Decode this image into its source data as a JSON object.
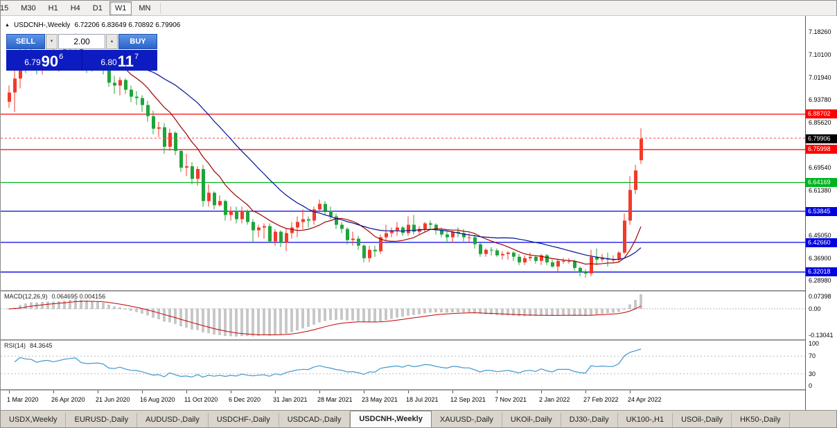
{
  "toolbar": {
    "timeframes": [
      "15",
      "M30",
      "H1",
      "H4",
      "D1",
      "W1",
      "MN"
    ],
    "active": "W1"
  },
  "icons": {
    "symbol_marker": "▲",
    "volume_up": "▲",
    "volume_down": "▼"
  },
  "chart_header": {
    "symbol_label": "USDCNH-,Weekly",
    "ohlc_text": "6.72206 6.83649 6.70892 6.79906"
  },
  "trade_panel": {
    "sell_label": "SELL",
    "buy_label": "BUY",
    "volume": "2.00",
    "sell_quote": {
      "prefix": "6.79",
      "big": "90",
      "sup": "6"
    },
    "buy_quote": {
      "prefix": "6.80",
      "big": "11",
      "sup": "7"
    }
  },
  "indicators": {
    "macd": {
      "label": "MACD(12,26,9)",
      "values": "0.064695 0.004156"
    },
    "rsi": {
      "label": "RSI(14)",
      "value": "84.3645"
    }
  },
  "tab_bar": {
    "tabs": [
      {
        "label": "USDX,Weekly",
        "active": false
      },
      {
        "label": "EURUSD-,Daily",
        "active": false
      },
      {
        "label": "AUDUSD-,Daily",
        "active": false
      },
      {
        "label": "USDCHF-,Daily",
        "active": false
      },
      {
        "label": "USDCAD-,Daily",
        "active": false
      },
      {
        "label": "USDCNH-,Weekly",
        "active": true
      },
      {
        "label": "XAUUSD-,Daily",
        "active": false
      },
      {
        "label": "UKOil-,Daily",
        "active": false
      },
      {
        "label": "DJ30-,Daily",
        "active": false
      },
      {
        "label": "UK100-,H1",
        "active": false
      },
      {
        "label": "USOil-,Daily",
        "active": false
      },
      {
        "label": "HK50-,Daily",
        "active": false
      }
    ]
  },
  "chart_data": {
    "type": "candlestick",
    "symbol": "USDCNH-",
    "timeframe": "Weekly",
    "ohlc_current": {
      "open": "6.72206",
      "high": "6.83649",
      "low": "6.70892",
      "close": "6.79906"
    },
    "price_range": {
      "min": 6.255,
      "max": 7.235
    },
    "label_every_n_candles": 8,
    "x_labels": [
      "1 Mar 2020",
      "26 Apr 2020",
      "21 Jun 2020",
      "16 Aug 2020",
      "11 Oct 2020",
      "6 Dec 2020",
      "31 Jan 2021",
      "28 Mar 2021",
      "23 May 2021",
      "18 Jul 2021",
      "12 Sep 2021",
      "7 Nov 2021",
      "2 Jan 2022",
      "27 Feb 2022",
      "24 Apr 2022"
    ],
    "y_axis_labels": [
      "7.18260",
      "7.10100",
      "7.01940",
      "6.93780",
      "6.85620",
      "6.69540",
      "6.61380",
      "6.45050",
      "6.36900",
      "6.28980"
    ],
    "badges": [
      {
        "text": "6.88702",
        "price": 6.88702,
        "color": "#ff0000"
      },
      {
        "text": "6.79906",
        "price": 6.79906,
        "color": "#000000"
      },
      {
        "text": "6.75998",
        "price": 6.75998,
        "color": "#ff0000"
      },
      {
        "text": "6.64169",
        "price": 6.64169,
        "color": "#00b41e"
      },
      {
        "text": "6.53845",
        "price": 6.53845,
        "color": "#0000e0"
      },
      {
        "text": "6.42660",
        "price": 6.4266,
        "color": "#0000e0"
      },
      {
        "text": "6.32018",
        "price": 6.32018,
        "color": "#0000e0"
      }
    ],
    "hlines": [
      {
        "price": 6.88702,
        "color": "#ff0000"
      },
      {
        "price": 6.75998,
        "color": "#ff0000"
      },
      {
        "price": 6.64169,
        "color": "#00b41e"
      },
      {
        "price": 6.53845,
        "color": "#0000e0"
      },
      {
        "price": 6.4266,
        "color": "#0000e0"
      },
      {
        "price": 6.32018,
        "color": "#0000e0"
      }
    ],
    "ask_price": 6.80117,
    "ma": {
      "fast_period": 10,
      "slow_period": 25
    },
    "macd_axis_labels": [
      "0.07398",
      "0.00",
      "-0.13041"
    ],
    "rsi_axis_labels": [
      "100",
      "70",
      "30",
      "0"
    ],
    "rsi_levels": [
      70,
      30
    ],
    "colors": {
      "up_candle": "#f23a2a",
      "down_candle": "#1fa43a",
      "ma_fast": "#a00000",
      "ma_slow": "#000f96",
      "macd_hist": "#c6c6c6",
      "macd_signal": "#c00000",
      "rsi_line": "#3f97cf"
    },
    "candles": [
      [
        6.932,
        6.99,
        6.91,
        6.965
      ],
      [
        6.965,
        7.055,
        6.895,
        7.015
      ],
      [
        7.015,
        7.165,
        6.98,
        7.115
      ],
      [
        7.115,
        7.14,
        7.035,
        7.095
      ],
      [
        7.095,
        7.125,
        7.05,
        7.09
      ],
      [
        7.09,
        7.105,
        7.03,
        7.045
      ],
      [
        7.045,
        7.09,
        7.03,
        7.075
      ],
      [
        7.075,
        7.11,
        7.055,
        7.085
      ],
      [
        7.085,
        7.135,
        7.05,
        7.065
      ],
      [
        7.065,
        7.105,
        7.04,
        7.09
      ],
      [
        7.09,
        7.135,
        7.065,
        7.12
      ],
      [
        7.12,
        7.155,
        7.09,
        7.135
      ],
      [
        7.135,
        7.177,
        7.105,
        7.15
      ],
      [
        7.15,
        7.16,
        7.06,
        7.085
      ],
      [
        7.085,
        7.105,
        7.035,
        7.07
      ],
      [
        7.07,
        7.095,
        7.04,
        7.075
      ],
      [
        7.075,
        7.1,
        7.05,
        7.08
      ],
      [
        7.08,
        7.09,
        7.03,
        7.065
      ],
      [
        7.065,
        7.075,
        6.985,
        7.0
      ],
      [
        7.0,
        7.025,
        6.96,
        6.99
      ],
      [
        6.99,
        7.02,
        6.955,
        7.01
      ],
      [
        7.01,
        7.015,
        6.96,
        6.975
      ],
      [
        6.975,
        6.99,
        6.93,
        6.95
      ],
      [
        6.95,
        6.97,
        6.92,
        6.945
      ],
      [
        6.945,
        6.955,
        6.895,
        6.92
      ],
      [
        6.92,
        6.935,
        6.86,
        6.88
      ],
      [
        6.88,
        6.9,
        6.815,
        6.835
      ],
      [
        6.835,
        6.86,
        6.805,
        6.84
      ],
      [
        6.84,
        6.855,
        6.745,
        6.77
      ],
      [
        6.77,
        6.835,
        6.755,
        6.82
      ],
      [
        6.82,
        6.825,
        6.74,
        6.755
      ],
      [
        6.755,
        6.76,
        6.68,
        6.695
      ],
      [
        6.695,
        6.745,
        6.665,
        6.7
      ],
      [
        6.7,
        6.715,
        6.635,
        6.655
      ],
      [
        6.655,
        6.7,
        6.63,
        6.69
      ],
      [
        6.69,
        6.705,
        6.555,
        6.575
      ],
      [
        6.575,
        6.635,
        6.555,
        6.605
      ],
      [
        6.605,
        6.61,
        6.545,
        6.56
      ],
      [
        6.56,
        6.595,
        6.555,
        6.575
      ],
      [
        6.575,
        6.58,
        6.505,
        6.525
      ],
      [
        6.525,
        6.555,
        6.505,
        6.54
      ],
      [
        6.54,
        6.555,
        6.495,
        6.51
      ],
      [
        6.51,
        6.555,
        6.495,
        6.54
      ],
      [
        6.54,
        6.545,
        6.49,
        6.5
      ],
      [
        6.5,
        6.51,
        6.425,
        6.47
      ],
      [
        6.47,
        6.49,
        6.445,
        6.48
      ],
      [
        6.48,
        6.495,
        6.44,
        6.485
      ],
      [
        6.485,
        6.495,
        6.425,
        6.43
      ],
      [
        6.43,
        6.475,
        6.415,
        6.465
      ],
      [
        6.465,
        6.47,
        6.41,
        6.425
      ],
      [
        6.425,
        6.475,
        6.395,
        6.46
      ],
      [
        6.46,
        6.5,
        6.44,
        6.48
      ],
      [
        6.48,
        6.52,
        6.445,
        6.5
      ],
      [
        6.5,
        6.545,
        6.475,
        6.51
      ],
      [
        6.51,
        6.52,
        6.48,
        6.505
      ],
      [
        6.505,
        6.555,
        6.49,
        6.545
      ],
      [
        6.545,
        6.58,
        6.535,
        6.565
      ],
      [
        6.565,
        6.575,
        6.525,
        6.54
      ],
      [
        6.54,
        6.555,
        6.51,
        6.52
      ],
      [
        6.52,
        6.53,
        6.475,
        6.49
      ],
      [
        6.49,
        6.5,
        6.46,
        6.475
      ],
      [
        6.475,
        6.48,
        6.42,
        6.435
      ],
      [
        6.435,
        6.465,
        6.415,
        6.44
      ],
      [
        6.44,
        6.45,
        6.4,
        6.415
      ],
      [
        6.415,
        6.42,
        6.355,
        6.37
      ],
      [
        6.37,
        6.415,
        6.355,
        6.4
      ],
      [
        6.4,
        6.415,
        6.375,
        6.395
      ],
      [
        6.395,
        6.455,
        6.385,
        6.445
      ],
      [
        6.445,
        6.49,
        6.435,
        6.46
      ],
      [
        6.46,
        6.48,
        6.445,
        6.47
      ],
      [
        6.47,
        6.5,
        6.45,
        6.48
      ],
      [
        6.48,
        6.485,
        6.45,
        6.46
      ],
      [
        6.46,
        6.52,
        6.45,
        6.49
      ],
      [
        6.49,
        6.525,
        6.455,
        6.465
      ],
      [
        6.465,
        6.485,
        6.455,
        6.475
      ],
      [
        6.475,
        6.5,
        6.465,
        6.495
      ],
      [
        6.495,
        6.505,
        6.475,
        6.49
      ],
      [
        6.49,
        6.495,
        6.455,
        6.47
      ],
      [
        6.47,
        6.48,
        6.445,
        6.455
      ],
      [
        6.455,
        6.465,
        6.425,
        6.445
      ],
      [
        6.445,
        6.47,
        6.425,
        6.465
      ],
      [
        6.465,
        6.48,
        6.445,
        6.46
      ],
      [
        6.46,
        6.475,
        6.43,
        6.445
      ],
      [
        6.445,
        6.46,
        6.425,
        6.445
      ],
      [
        6.445,
        6.455,
        6.405,
        6.42
      ],
      [
        6.42,
        6.425,
        6.375,
        6.385
      ],
      [
        6.385,
        6.405,
        6.375,
        6.4
      ],
      [
        6.4,
        6.41,
        6.38,
        6.398
      ],
      [
        6.398,
        6.405,
        6.375,
        6.38
      ],
      [
        6.38,
        6.395,
        6.365,
        6.385
      ],
      [
        6.385,
        6.395,
        6.365,
        6.39
      ],
      [
        6.39,
        6.395,
        6.36,
        6.375
      ],
      [
        6.375,
        6.385,
        6.345,
        6.355
      ],
      [
        6.355,
        6.38,
        6.345,
        6.37
      ],
      [
        6.37,
        6.39,
        6.36,
        6.375
      ],
      [
        6.375,
        6.38,
        6.35,
        6.36
      ],
      [
        6.36,
        6.385,
        6.345,
        6.38
      ],
      [
        6.38,
        6.385,
        6.345,
        6.355
      ],
      [
        6.355,
        6.365,
        6.335,
        6.34
      ],
      [
        6.34,
        6.365,
        6.32,
        6.36
      ],
      [
        6.36,
        6.37,
        6.35,
        6.36
      ],
      [
        6.36,
        6.37,
        6.35,
        6.36
      ],
      [
        6.36,
        6.365,
        6.325,
        6.335
      ],
      [
        6.335,
        6.34,
        6.305,
        6.32
      ],
      [
        6.32,
        6.33,
        6.3,
        6.315
      ],
      [
        6.315,
        6.4,
        6.305,
        6.375
      ],
      [
        6.375,
        6.405,
        6.345,
        6.365
      ],
      [
        6.365,
        6.385,
        6.355,
        6.37
      ],
      [
        6.37,
        6.39,
        6.34,
        6.365
      ],
      [
        6.365,
        6.38,
        6.355,
        6.365
      ],
      [
        6.365,
        6.395,
        6.355,
        6.39
      ],
      [
        6.39,
        6.53,
        6.385,
        6.505
      ],
      [
        6.505,
        6.665,
        6.49,
        6.615
      ],
      [
        6.615,
        6.705,
        6.6,
        6.685
      ],
      [
        6.72206,
        6.83649,
        6.70892,
        6.79906
      ]
    ]
  }
}
